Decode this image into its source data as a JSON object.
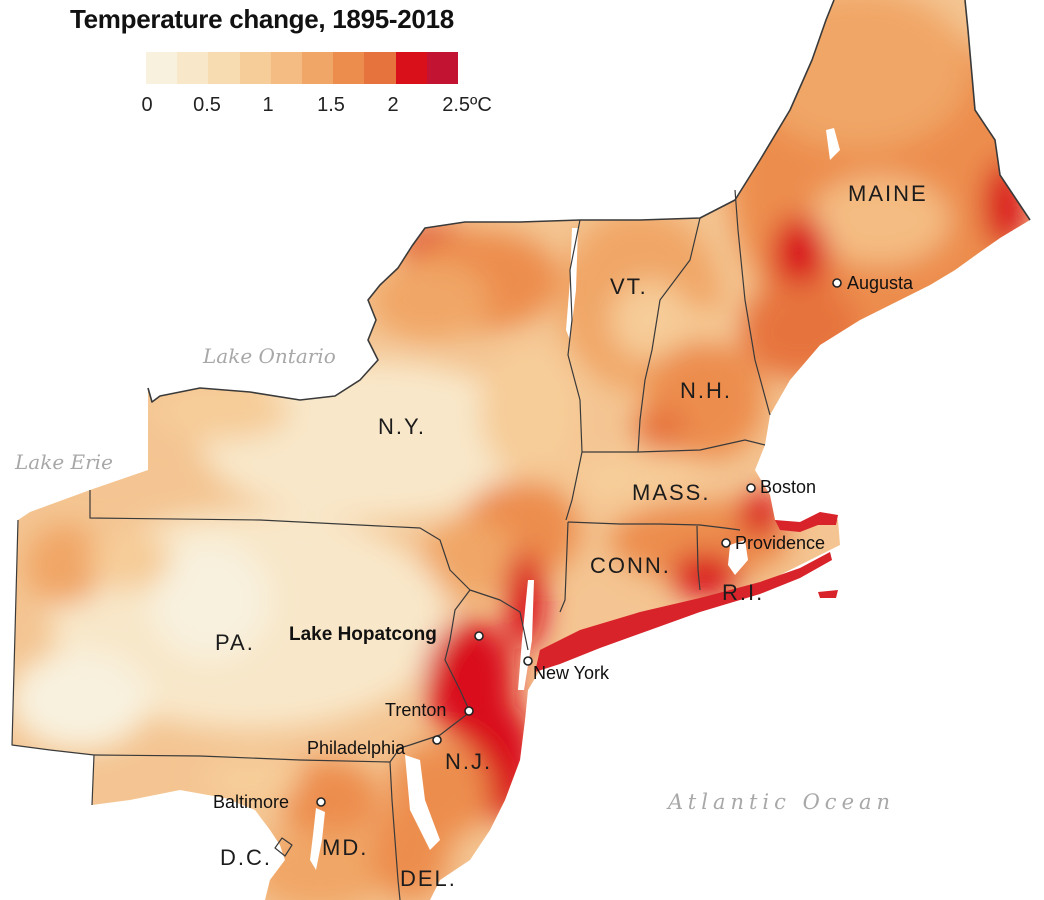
{
  "title": "Temperature change, 1895-2018",
  "legend": {
    "colors": [
      "#f8f1de",
      "#f8e7c9",
      "#f7dcb2",
      "#f6cc98",
      "#f4bc82",
      "#f0a666",
      "#ec8d4e",
      "#e6733d",
      "#d9101a",
      "#c21432"
    ],
    "ticks": [
      "0",
      "0.5",
      "1",
      "1.5",
      "2",
      "2.5ºC"
    ]
  },
  "labels": {
    "states": {
      "maine": "MAINE",
      "vt": "VT.",
      "nh": "N.H.",
      "ny": "N.Y.",
      "mass": "MASS.",
      "conn": "CONN.",
      "ri": "R.I.",
      "pa": "PA.",
      "nj": "N.J.",
      "md": "MD.",
      "dc": "D.C.",
      "del": "DEL."
    },
    "cities": {
      "augusta": "Augusta",
      "boston": "Boston",
      "providence": "Providence",
      "new_york": "New York",
      "trenton": "Trenton",
      "philadelphia": "Philadelphia",
      "baltimore": "Baltimore",
      "lake_hopatcong": "Lake Hopatcong"
    },
    "water": {
      "lake_ontario": "Lake Ontario",
      "lake_erie": "Lake Erie",
      "atlantic": "Atlantic Ocean"
    }
  }
}
